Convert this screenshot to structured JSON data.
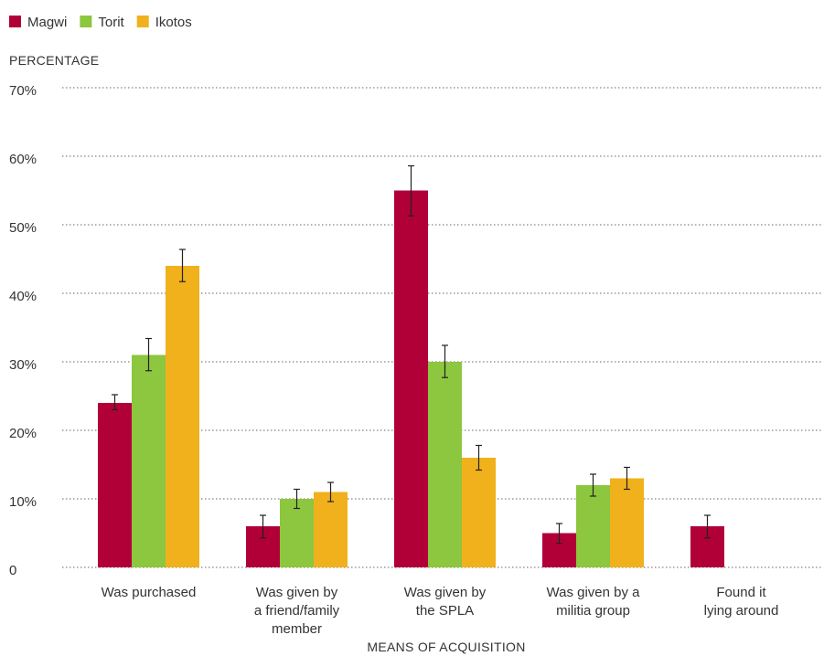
{
  "chart_data": {
    "type": "bar",
    "ylabel": "PERCENTAGE",
    "xlabel": "MEANS OF ACQUISITION",
    "ylim": [
      0,
      70
    ],
    "yticks": [
      0,
      10,
      20,
      30,
      40,
      50,
      60,
      70
    ],
    "ytick_labels": [
      "0",
      "10%",
      "20%",
      "30%",
      "40%",
      "50%",
      "60%",
      "70%"
    ],
    "grid": true,
    "legend_position": "top-left",
    "categories": [
      [
        "Was purchased"
      ],
      [
        "Was given by",
        "a friend/family",
        "member"
      ],
      [
        "Was given by",
        "the SPLA"
      ],
      [
        "Was given by a",
        "militia group"
      ],
      [
        "Found it",
        "lying around"
      ]
    ],
    "series": [
      {
        "name": "Magwi",
        "color": "#b10038",
        "values": [
          24,
          6,
          55,
          5,
          6
        ],
        "error_low": [
          23,
          4.3,
          51.3,
          3.5,
          4.3
        ],
        "error_high": [
          25.2,
          7.6,
          58.6,
          6.4,
          7.6
        ]
      },
      {
        "name": "Torit",
        "color": "#8dc63f",
        "values": [
          31,
          10,
          30,
          12,
          null
        ],
        "error_low": [
          28.7,
          8.6,
          27.7,
          10.4,
          null
        ],
        "error_high": [
          33.4,
          11.4,
          32.4,
          13.6,
          null
        ]
      },
      {
        "name": "Ikotos",
        "color": "#f0b11d",
        "values": [
          44,
          11,
          16,
          13,
          null
        ],
        "error_low": [
          41.7,
          9.6,
          14.2,
          11.4,
          null
        ],
        "error_high": [
          46.4,
          12.4,
          17.8,
          14.6,
          null
        ]
      }
    ]
  }
}
